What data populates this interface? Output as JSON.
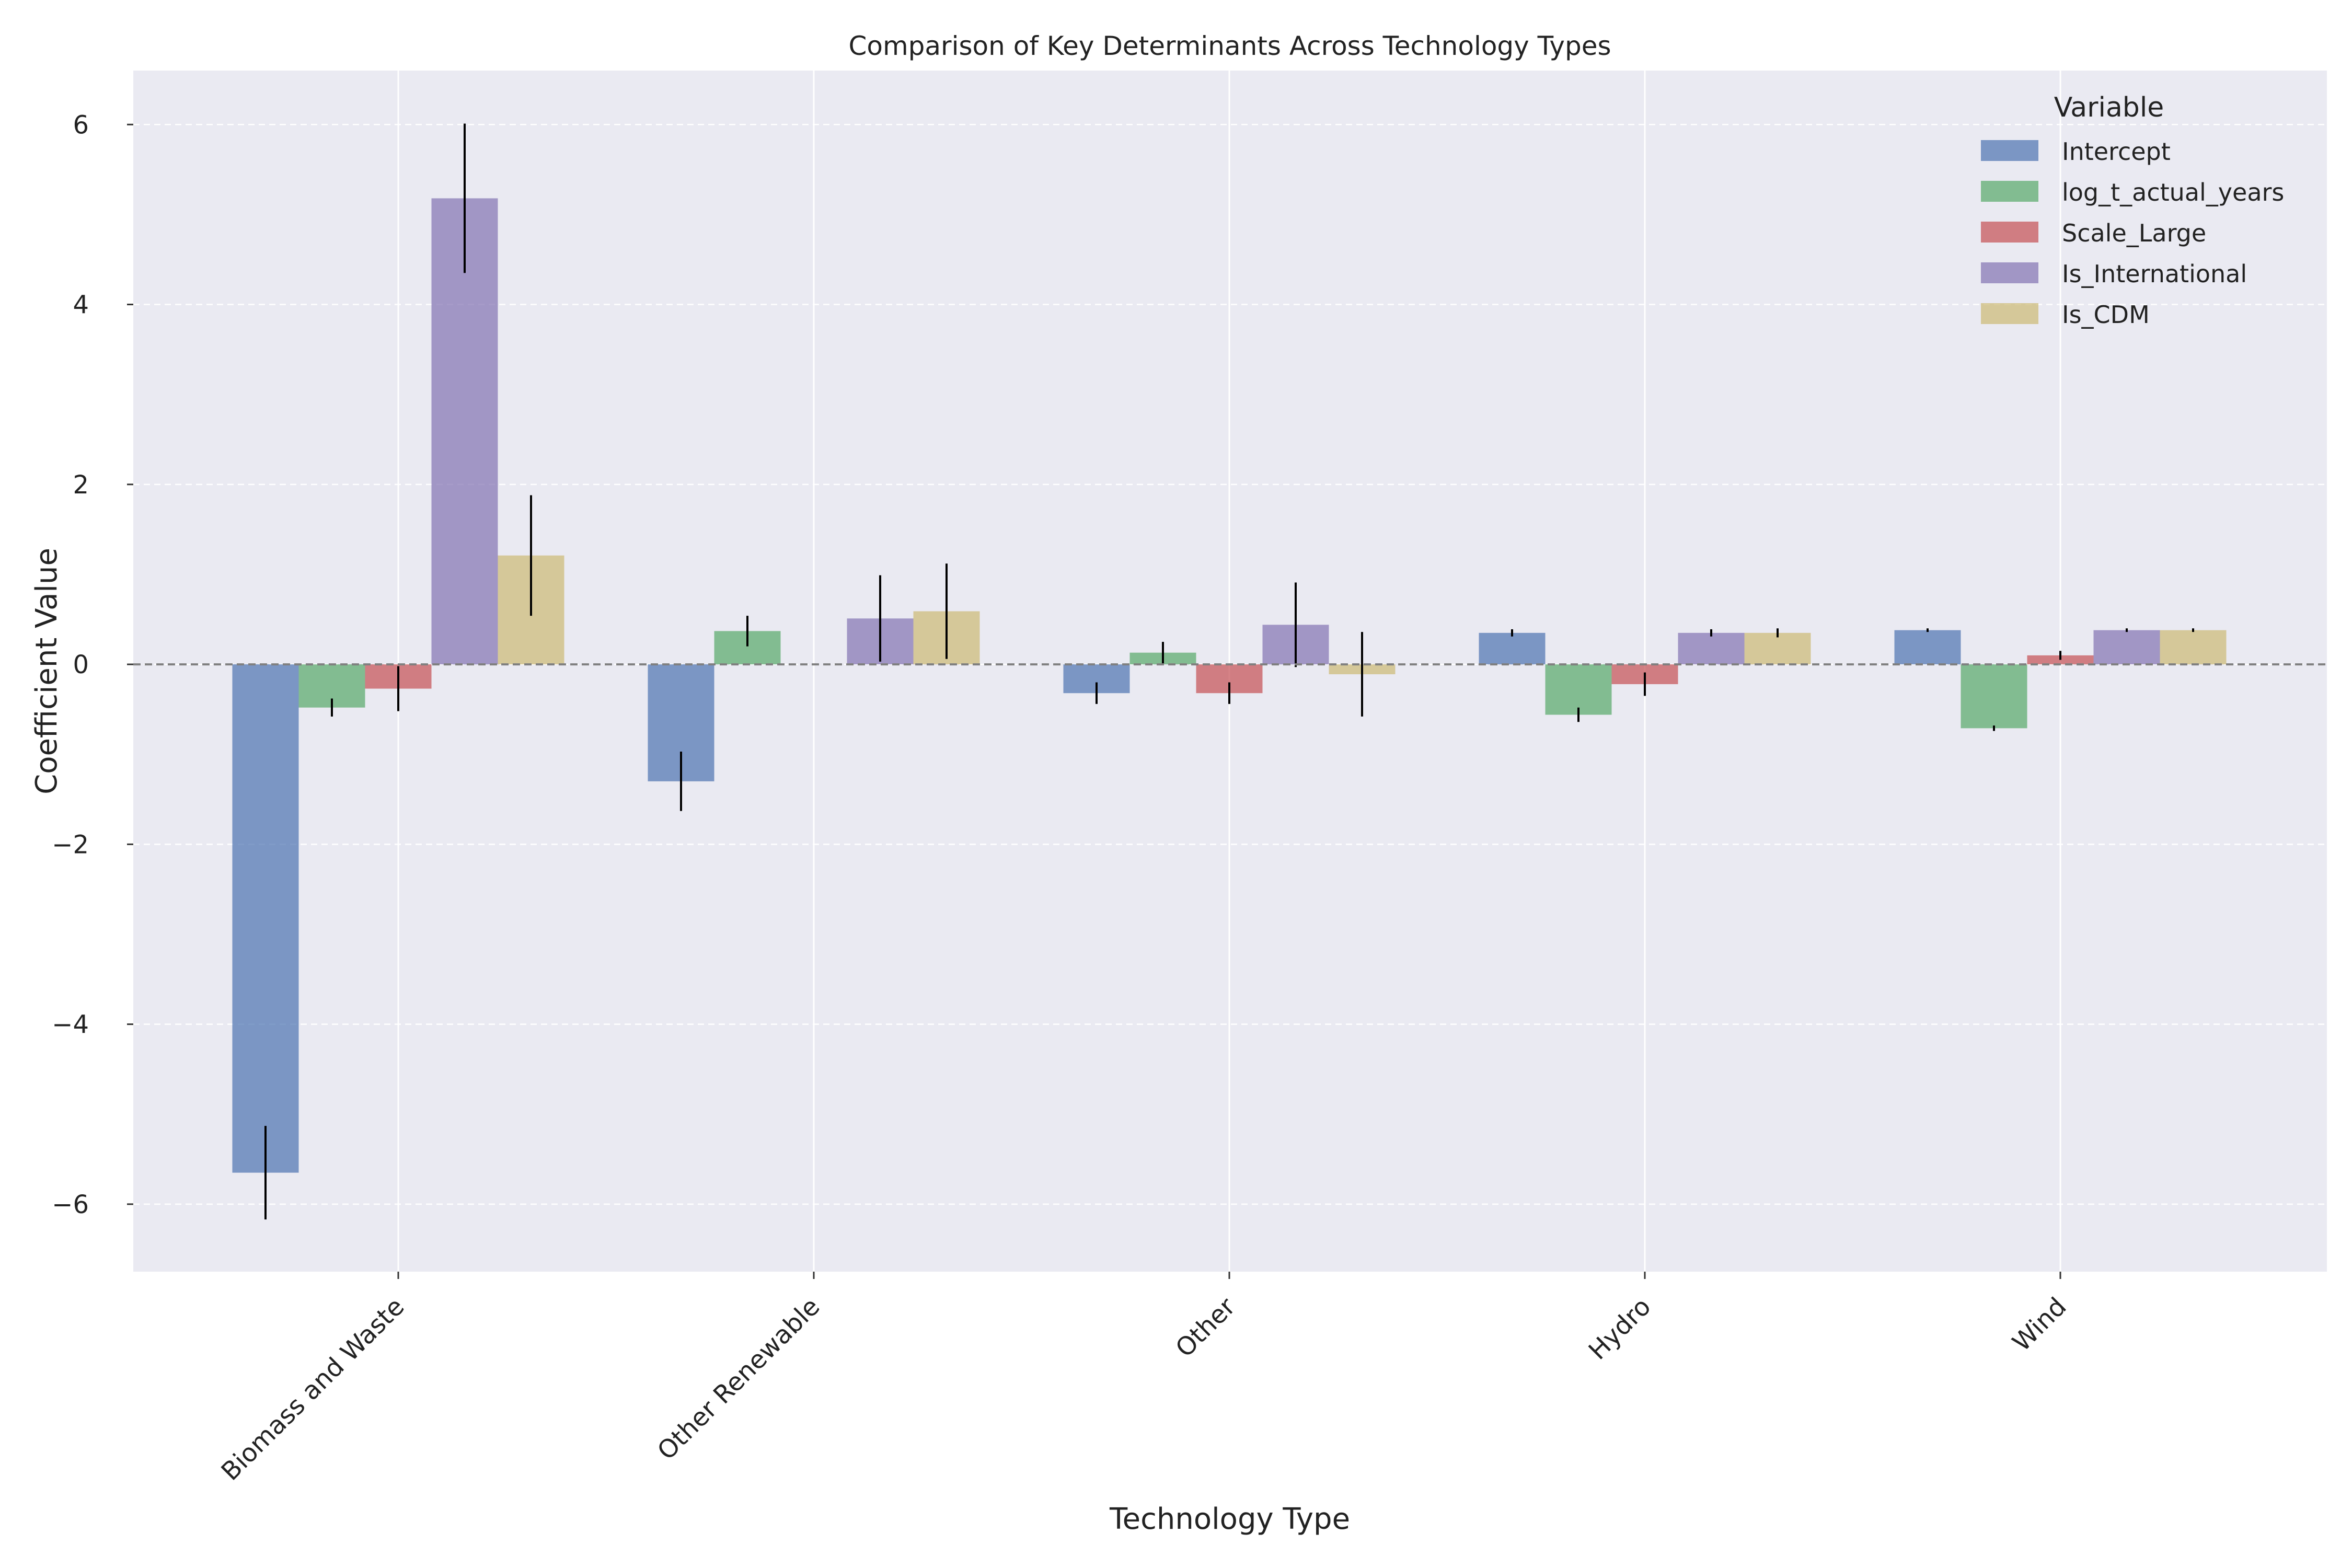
{
  "chart_data": {
    "type": "bar",
    "title": "Comparison of Key Determinants Across Technology Types",
    "xlabel": "Technology Type",
    "ylabel": "Coefficient Value",
    "ylim": [
      -6.75,
      6.6
    ],
    "yticks": [
      -6,
      -4,
      -2,
      0,
      2,
      4,
      6
    ],
    "ytick_labels": [
      "−6",
      "−4",
      "−2",
      "0",
      "2",
      "4",
      "6"
    ],
    "categories": [
      "Biomass and Waste",
      "Other Renewable",
      "Other",
      "Hydro",
      "Wind"
    ],
    "grid": true,
    "zero_line": true,
    "legend": {
      "title": "Variable",
      "placement": "top-right"
    },
    "series": [
      {
        "name": "Intercept",
        "color": "#4c72b0",
        "values": [
          -5.65,
          -1.3,
          -0.32,
          0.35,
          0.38
        ],
        "errors": [
          0.52,
          0.33,
          0.12,
          0.04,
          0.02
        ]
      },
      {
        "name": "log_t_actual_years",
        "color": "#55a868",
        "values": [
          -0.48,
          0.37,
          0.13,
          -0.56,
          -0.71
        ],
        "errors": [
          0.1,
          0.17,
          0.12,
          0.08,
          0.03
        ]
      },
      {
        "name": "Scale_Large",
        "color": "#c44e52",
        "values": [
          -0.27,
          0.0,
          -0.32,
          -0.22,
          0.1
        ],
        "errors": [
          0.25,
          0.0,
          0.12,
          0.13,
          0.05
        ]
      },
      {
        "name": "Is_International",
        "color": "#8172b2",
        "values": [
          5.18,
          0.51,
          0.44,
          0.35,
          0.38
        ],
        "errors": [
          0.83,
          0.48,
          0.47,
          0.04,
          0.02
        ]
      },
      {
        "name": "Is_CDM",
        "color": "#ccb974",
        "values": [
          1.21,
          0.59,
          -0.11,
          0.35,
          0.38
        ],
        "errors": [
          0.67,
          0.53,
          0.47,
          0.05,
          0.02
        ]
      }
    ]
  }
}
